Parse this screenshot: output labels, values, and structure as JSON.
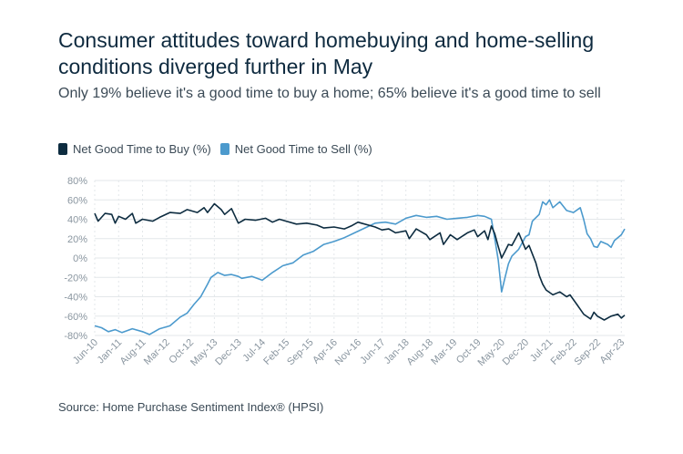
{
  "title": "Consumer attitudes toward homebuying and home-selling conditions diverged further in May",
  "subtitle": "Only 19% believe it's a good time to buy a home; 65% believe it's a good time to sell",
  "source": "Source: Home Purchase Sentiment Index® (HPSI)",
  "colors": {
    "buy": "#0d2c40",
    "sell": "#4c9acd",
    "grid": "#e3e7ea",
    "axis": "#8a96a0"
  },
  "chart_data": {
    "type": "line",
    "ylim": [
      -80,
      80
    ],
    "yticks": [
      80,
      60,
      40,
      20,
      0,
      -20,
      -40,
      -60,
      -80
    ],
    "ytick_labels": [
      "80%",
      "60%",
      "40%",
      "20%",
      "0%",
      "-20%",
      "-40%",
      "-60%",
      "-80%"
    ],
    "xlim": [
      2010.417,
      2023.333
    ],
    "xticks": [
      2010.417,
      2011.0,
      2011.583,
      2012.167,
      2012.75,
      2013.333,
      2013.917,
      2014.5,
      2015.083,
      2015.667,
      2016.25,
      2016.833,
      2017.417,
      2018.0,
      2018.583,
      2019.167,
      2019.75,
      2020.333,
      2020.917,
      2021.5,
      2022.083,
      2022.667,
      2023.25
    ],
    "xtick_labels": [
      "Jun-10",
      "Jan-11",
      "Aug-11",
      "Mar-12",
      "Oct-12",
      "May-13",
      "Dec-13",
      "Jul-14",
      "Feb-15",
      "Sep-15",
      "Apr-16",
      "Nov-16",
      "Jun-17",
      "Jan-18",
      "Aug-18",
      "Mar-19",
      "Oct-19",
      "May-20",
      "Dec-20",
      "Jul-21",
      "Feb-22",
      "Sep-22",
      "Apr-23"
    ],
    "series": [
      {
        "name": "Net Good Time to Buy (%)",
        "points": [
          [
            2010.417,
            46
          ],
          [
            2010.5,
            38
          ],
          [
            2010.667,
            46
          ],
          [
            2010.833,
            45
          ],
          [
            2010.917,
            36
          ],
          [
            2011.0,
            43
          ],
          [
            2011.167,
            40
          ],
          [
            2011.333,
            46
          ],
          [
            2011.417,
            36
          ],
          [
            2011.583,
            40
          ],
          [
            2011.833,
            38
          ],
          [
            2012.0,
            42
          ],
          [
            2012.25,
            47
          ],
          [
            2012.5,
            46
          ],
          [
            2012.667,
            50
          ],
          [
            2012.917,
            47
          ],
          [
            2013.083,
            52
          ],
          [
            2013.167,
            47
          ],
          [
            2013.333,
            56
          ],
          [
            2013.5,
            50
          ],
          [
            2013.583,
            45
          ],
          [
            2013.75,
            51
          ],
          [
            2013.917,
            36
          ],
          [
            2014.083,
            40
          ],
          [
            2014.333,
            39
          ],
          [
            2014.583,
            41
          ],
          [
            2014.75,
            37
          ],
          [
            2014.917,
            40
          ],
          [
            2015.083,
            38
          ],
          [
            2015.333,
            35
          ],
          [
            2015.583,
            36
          ],
          [
            2015.833,
            34
          ],
          [
            2016.0,
            31
          ],
          [
            2016.25,
            32
          ],
          [
            2016.5,
            30
          ],
          [
            2016.667,
            33
          ],
          [
            2016.833,
            37
          ],
          [
            2016.917,
            36
          ],
          [
            2017.083,
            34
          ],
          [
            2017.25,
            32
          ],
          [
            2017.417,
            29
          ],
          [
            2017.583,
            30
          ],
          [
            2017.75,
            26
          ],
          [
            2018.0,
            28
          ],
          [
            2018.083,
            20
          ],
          [
            2018.25,
            30
          ],
          [
            2018.5,
            24
          ],
          [
            2018.583,
            19
          ],
          [
            2018.833,
            26
          ],
          [
            2018.917,
            14
          ],
          [
            2019.083,
            24
          ],
          [
            2019.25,
            19
          ],
          [
            2019.5,
            26
          ],
          [
            2019.667,
            29
          ],
          [
            2019.75,
            22
          ],
          [
            2019.917,
            28
          ],
          [
            2020.0,
            19
          ],
          [
            2020.083,
            33
          ],
          [
            2020.167,
            25
          ],
          [
            2020.25,
            12
          ],
          [
            2020.333,
            0
          ],
          [
            2020.417,
            7
          ],
          [
            2020.5,
            14
          ],
          [
            2020.583,
            13
          ],
          [
            2020.75,
            26
          ],
          [
            2020.917,
            9
          ],
          [
            2021.0,
            13
          ],
          [
            2021.167,
            -5
          ],
          [
            2021.25,
            -18
          ],
          [
            2021.333,
            -27
          ],
          [
            2021.417,
            -33
          ],
          [
            2021.583,
            -38
          ],
          [
            2021.75,
            -35
          ],
          [
            2021.917,
            -40
          ],
          [
            2022.0,
            -38
          ],
          [
            2022.167,
            -48
          ],
          [
            2022.333,
            -58
          ],
          [
            2022.5,
            -63
          ],
          [
            2022.583,
            -56
          ],
          [
            2022.667,
            -60
          ],
          [
            2022.833,
            -64
          ],
          [
            2023.0,
            -60
          ],
          [
            2023.167,
            -58
          ],
          [
            2023.25,
            -62
          ],
          [
            2023.333,
            -59
          ]
        ]
      },
      {
        "name": "Net Good Time to Sell (%)",
        "points": [
          [
            2010.417,
            -70
          ],
          [
            2010.583,
            -72
          ],
          [
            2010.75,
            -76
          ],
          [
            2010.917,
            -74
          ],
          [
            2011.083,
            -77
          ],
          [
            2011.333,
            -73
          ],
          [
            2011.583,
            -76
          ],
          [
            2011.75,
            -79
          ],
          [
            2012.0,
            -73
          ],
          [
            2012.25,
            -70
          ],
          [
            2012.5,
            -61
          ],
          [
            2012.667,
            -57
          ],
          [
            2012.833,
            -48
          ],
          [
            2013.0,
            -40
          ],
          [
            2013.167,
            -27
          ],
          [
            2013.25,
            -20
          ],
          [
            2013.417,
            -15
          ],
          [
            2013.583,
            -18
          ],
          [
            2013.75,
            -17
          ],
          [
            2013.917,
            -19
          ],
          [
            2014.0,
            -21
          ],
          [
            2014.25,
            -19
          ],
          [
            2014.5,
            -23
          ],
          [
            2014.75,
            -15
          ],
          [
            2015.0,
            -8
          ],
          [
            2015.25,
            -5
          ],
          [
            2015.5,
            3
          ],
          [
            2015.75,
            7
          ],
          [
            2016.0,
            14
          ],
          [
            2016.25,
            17
          ],
          [
            2016.5,
            21
          ],
          [
            2016.75,
            26
          ],
          [
            2017.0,
            31
          ],
          [
            2017.25,
            36
          ],
          [
            2017.5,
            37
          ],
          [
            2017.75,
            35
          ],
          [
            2018.0,
            41
          ],
          [
            2018.25,
            44
          ],
          [
            2018.5,
            42
          ],
          [
            2018.75,
            43
          ],
          [
            2019.0,
            40
          ],
          [
            2019.25,
            41
          ],
          [
            2019.5,
            42
          ],
          [
            2019.75,
            44
          ],
          [
            2019.917,
            43
          ],
          [
            2020.083,
            40
          ],
          [
            2020.167,
            20
          ],
          [
            2020.25,
            -2
          ],
          [
            2020.333,
            -35
          ],
          [
            2020.417,
            -20
          ],
          [
            2020.5,
            -6
          ],
          [
            2020.583,
            2
          ],
          [
            2020.75,
            9
          ],
          [
            2020.917,
            22
          ],
          [
            2021.0,
            24
          ],
          [
            2021.083,
            38
          ],
          [
            2021.25,
            45
          ],
          [
            2021.333,
            58
          ],
          [
            2021.417,
            55
          ],
          [
            2021.5,
            60
          ],
          [
            2021.583,
            52
          ],
          [
            2021.75,
            58
          ],
          [
            2021.917,
            49
          ],
          [
            2022.083,
            47
          ],
          [
            2022.25,
            52
          ],
          [
            2022.333,
            40
          ],
          [
            2022.417,
            25
          ],
          [
            2022.5,
            20
          ],
          [
            2022.583,
            12
          ],
          [
            2022.667,
            11
          ],
          [
            2022.75,
            17
          ],
          [
            2022.917,
            14
          ],
          [
            2023.0,
            11
          ],
          [
            2023.083,
            18
          ],
          [
            2023.25,
            24
          ],
          [
            2023.333,
            30
          ]
        ]
      }
    ]
  }
}
